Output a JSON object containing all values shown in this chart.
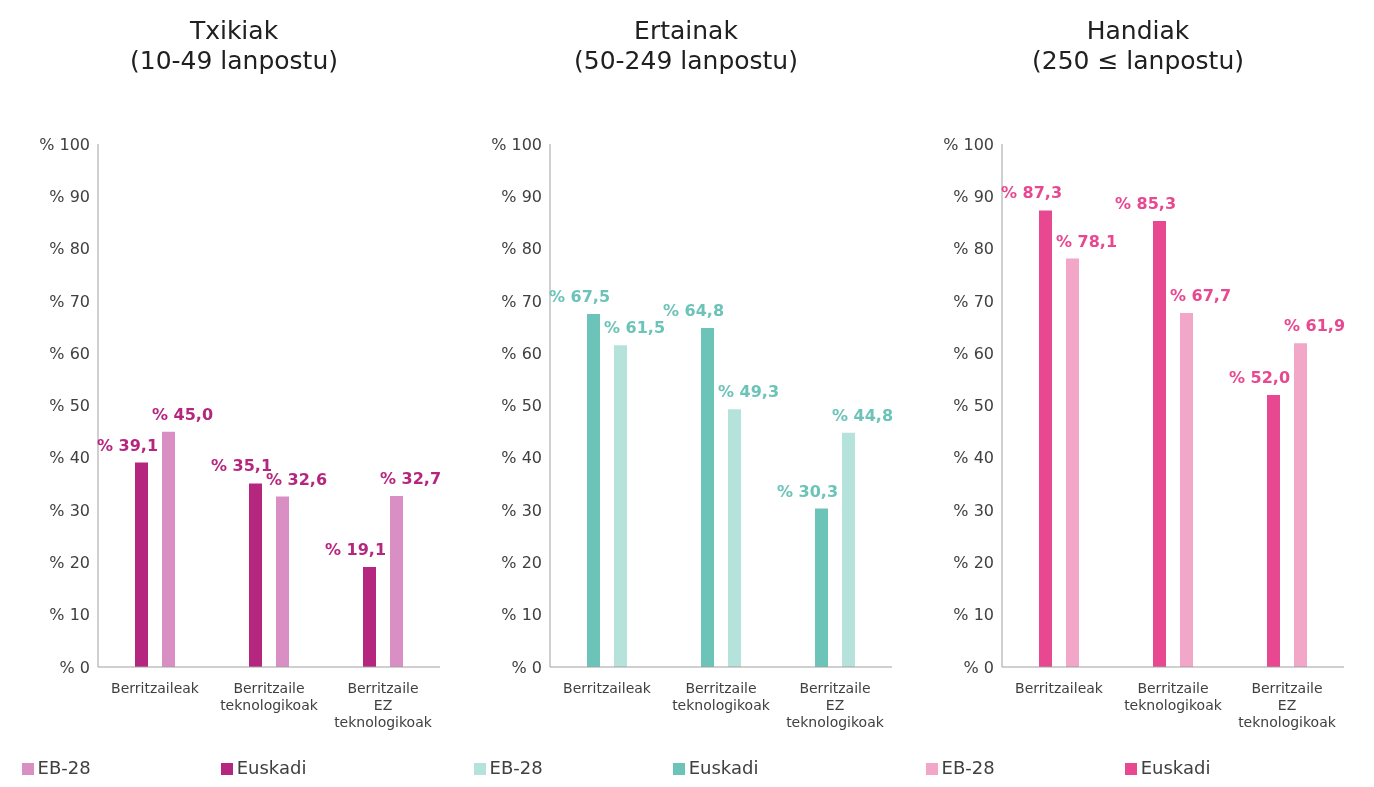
{
  "chart_data": [
    {
      "type": "bar",
      "title": "Txikiak",
      "subtitle": "(10-49 lanpostu)",
      "categories": [
        "Berritzaileak",
        "Berritzaile teknologikoak",
        "Berritzaile EZ teknologikoak"
      ],
      "ylim": [
        0,
        100
      ],
      "yticks": [
        {
          "value": 0,
          "label": "% 0"
        },
        {
          "value": 10,
          "label": "% 10"
        },
        {
          "value": 20,
          "label": "% 20"
        },
        {
          "value": 30,
          "label": "% 30"
        },
        {
          "value": 40,
          "label": "% 40"
        },
        {
          "value": 50,
          "label": "% 50"
        },
        {
          "value": 60,
          "label": "% 60"
        },
        {
          "value": 70,
          "label": "% 70"
        },
        {
          "value": 80,
          "label": "% 80"
        },
        {
          "value": 90,
          "label": "% 90"
        },
        {
          "value": 100,
          "label": "% 100"
        }
      ],
      "legend": "bottom",
      "series": [
        {
          "name": "Euskadi",
          "color": "#b5267f",
          "values": [
            39.1,
            35.1,
            19.1
          ],
          "value_labels": [
            "% 39,1",
            "% 35,1",
            "% 19,1"
          ]
        },
        {
          "name": "EB-28",
          "color": "#d98fc4",
          "values": [
            45.0,
            32.6,
            32.7
          ],
          "value_labels": [
            "% 45,0",
            "% 32,6",
            "% 32,7"
          ]
        }
      ]
    },
    {
      "type": "bar",
      "title": "Ertainak",
      "subtitle": "(50-249 lanpostu)",
      "categories": [
        "Berritzaileak",
        "Berritzaile teknologikoak",
        "Berritzaile EZ teknologikoak"
      ],
      "ylim": [
        0,
        100
      ],
      "yticks": [
        {
          "value": 0,
          "label": "% 0"
        },
        {
          "value": 10,
          "label": "% 10"
        },
        {
          "value": 20,
          "label": "% 20"
        },
        {
          "value": 30,
          "label": "% 30"
        },
        {
          "value": 40,
          "label": "% 40"
        },
        {
          "value": 50,
          "label": "% 50"
        },
        {
          "value": 60,
          "label": "% 60"
        },
        {
          "value": 70,
          "label": "% 70"
        },
        {
          "value": 80,
          "label": "% 80"
        },
        {
          "value": 90,
          "label": "% 90"
        },
        {
          "value": 100,
          "label": "% 100"
        }
      ],
      "legend": "bottom",
      "series": [
        {
          "name": "Euskadi",
          "color": "#6cc3b8",
          "values": [
            67.5,
            64.8,
            30.3
          ],
          "value_labels": [
            "% 67,5",
            "% 64,8",
            "% 30,3"
          ]
        },
        {
          "name": "EB-28",
          "color": "#b6e2dc",
          "values": [
            61.5,
            49.3,
            44.8
          ],
          "value_labels": [
            "% 61,5",
            "% 49,3",
            "% 44,8"
          ]
        }
      ]
    },
    {
      "type": "bar",
      "title": "Handiak",
      "subtitle": "(250 ≤ lanpostu)",
      "categories": [
        "Berritzaileak",
        "Berritzaile teknologikoak",
        "Berritzaile EZ teknologikoak"
      ],
      "ylim": [
        0,
        100
      ],
      "yticks": [
        {
          "value": 0,
          "label": "% 0"
        },
        {
          "value": 10,
          "label": "% 10"
        },
        {
          "value": 20,
          "label": "% 20"
        },
        {
          "value": 30,
          "label": "% 30"
        },
        {
          "value": 40,
          "label": "% 40"
        },
        {
          "value": 50,
          "label": "% 50"
        },
        {
          "value": 60,
          "label": "% 60"
        },
        {
          "value": 70,
          "label": "% 70"
        },
        {
          "value": 80,
          "label": "% 80"
        },
        {
          "value": 90,
          "label": "% 90"
        },
        {
          "value": 100,
          "label": "% 100"
        }
      ],
      "legend": "bottom",
      "series": [
        {
          "name": "Euskadi",
          "color": "#e8488f",
          "values": [
            87.3,
            85.3,
            52.0
          ],
          "value_labels": [
            "% 87,3",
            "% 85,3",
            "% 52,0"
          ]
        },
        {
          "name": "EB-28",
          "color": "#f2a6c8",
          "values": [
            78.1,
            67.7,
            61.9
          ],
          "value_labels": [
            "% 78,1",
            "% 67,7",
            "% 61,9"
          ]
        }
      ]
    }
  ]
}
